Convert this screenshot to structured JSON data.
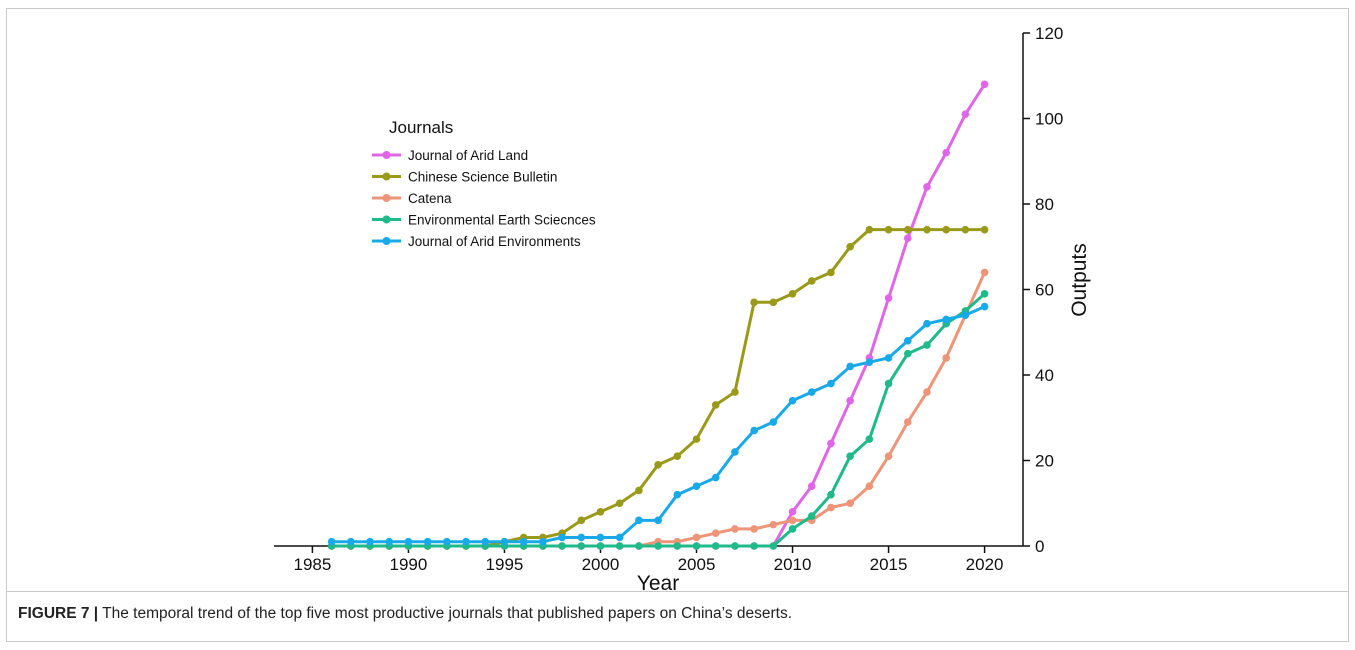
{
  "chart_data": {
    "type": "line",
    "xlabel": "Year",
    "ylabel": "Outputs",
    "xlim": [
      1983,
      2022
    ],
    "ylim": [
      0,
      120
    ],
    "xticks": [
      1985,
      1990,
      1995,
      2000,
      2005,
      2010,
      2015,
      2020
    ],
    "yticks": [
      0,
      20,
      40,
      60,
      80,
      100,
      120
    ],
    "y_axis_position": "right",
    "grid": false,
    "legend": {
      "title": "Journals",
      "position": "upper-left"
    },
    "x": [
      1986,
      1987,
      1988,
      1989,
      1990,
      1991,
      1992,
      1993,
      1994,
      1995,
      1996,
      1997,
      1998,
      1999,
      2000,
      2001,
      2002,
      2003,
      2004,
      2005,
      2006,
      2007,
      2008,
      2009,
      2010,
      2011,
      2012,
      2013,
      2014,
      2015,
      2016,
      2017,
      2018,
      2019,
      2020
    ],
    "series": [
      {
        "name": "Journal of Arid Land",
        "color": "#e066e8",
        "values": [
          0,
          0,
          0,
          0,
          0,
          0,
          0,
          0,
          0,
          0,
          0,
          0,
          0,
          0,
          0,
          0,
          0,
          0,
          0,
          0,
          0,
          0,
          0,
          0,
          8,
          14,
          24,
          34,
          44,
          58,
          72,
          84,
          92,
          101,
          108
        ]
      },
      {
        "name": "Chinese Science Bulletin",
        "color": "#9a9a1a",
        "values": [
          0,
          0,
          0,
          0,
          0,
          0,
          0,
          0,
          0,
          1,
          2,
          2,
          3,
          6,
          8,
          10,
          13,
          19,
          21,
          25,
          33,
          36,
          57,
          57,
          59,
          62,
          64,
          70,
          74,
          74,
          74,
          74,
          74,
          74,
          74
        ]
      },
      {
        "name": "Catena",
        "color": "#ee9478",
        "values": [
          0,
          0,
          0,
          0,
          0,
          0,
          0,
          0,
          0,
          0,
          0,
          0,
          0,
          0,
          0,
          0,
          0,
          1,
          1,
          2,
          3,
          4,
          4,
          5,
          6,
          6,
          9,
          10,
          14,
          21,
          29,
          36,
          44,
          54,
          64
        ]
      },
      {
        "name": "Environmental Earth Sciecnces",
        "color": "#1fb98a",
        "values": [
          0,
          0,
          0,
          0,
          0,
          0,
          0,
          0,
          0,
          0,
          0,
          0,
          0,
          0,
          0,
          0,
          0,
          0,
          0,
          0,
          0,
          0,
          0,
          0,
          4,
          7,
          12,
          21,
          25,
          38,
          45,
          47,
          52,
          55,
          59
        ]
      },
      {
        "name": "Journal of Arid Environments",
        "color": "#19a9e8",
        "values": [
          1,
          1,
          1,
          1,
          1,
          1,
          1,
          1,
          1,
          1,
          1,
          1,
          2,
          2,
          2,
          2,
          6,
          6,
          12,
          14,
          16,
          22,
          27,
          29,
          34,
          36,
          38,
          42,
          43,
          44,
          48,
          52,
          53,
          54,
          56
        ]
      }
    ]
  },
  "caption": {
    "label": "FIGURE 7 |",
    "text": " The temporal trend of the top five most productive journals that published papers on China’s deserts."
  }
}
